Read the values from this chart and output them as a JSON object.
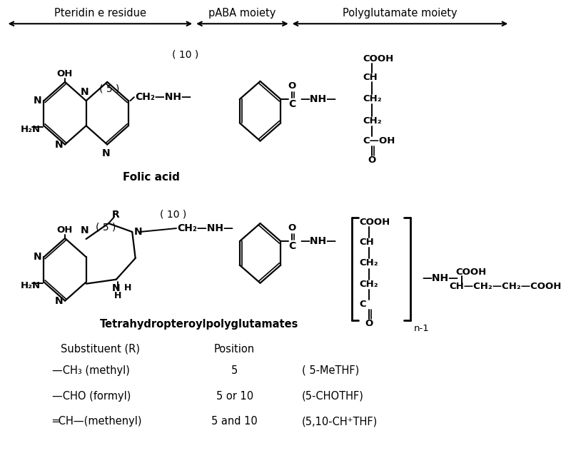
{
  "background_color": "#ffffff",
  "text_color": "#000000",
  "header_labels": {
    "pteridine": "Pteridin e residue",
    "paba": "pABA moiety",
    "polyglutamate": "Polyglutamate moiety"
  },
  "folic_acid_label": "Folic acid",
  "thf_label": "Tetrahydropteroylpolyglutamates",
  "substituent_header": "Substituent (R)",
  "position_header": "Position",
  "rows": [
    {
      "sub": "—CH₃ (methyl)",
      "pos": "5",
      "name": "( 5-MeTHF)"
    },
    {
      "sub": "—CHO (formyl)",
      "pos": "5 or 10",
      "name": "(5-CHOTHF)"
    },
    {
      "sub": "═CH—(methenyl)",
      "pos": "5 and 10",
      "name": "(5,10-CH⁺THF)"
    }
  ]
}
